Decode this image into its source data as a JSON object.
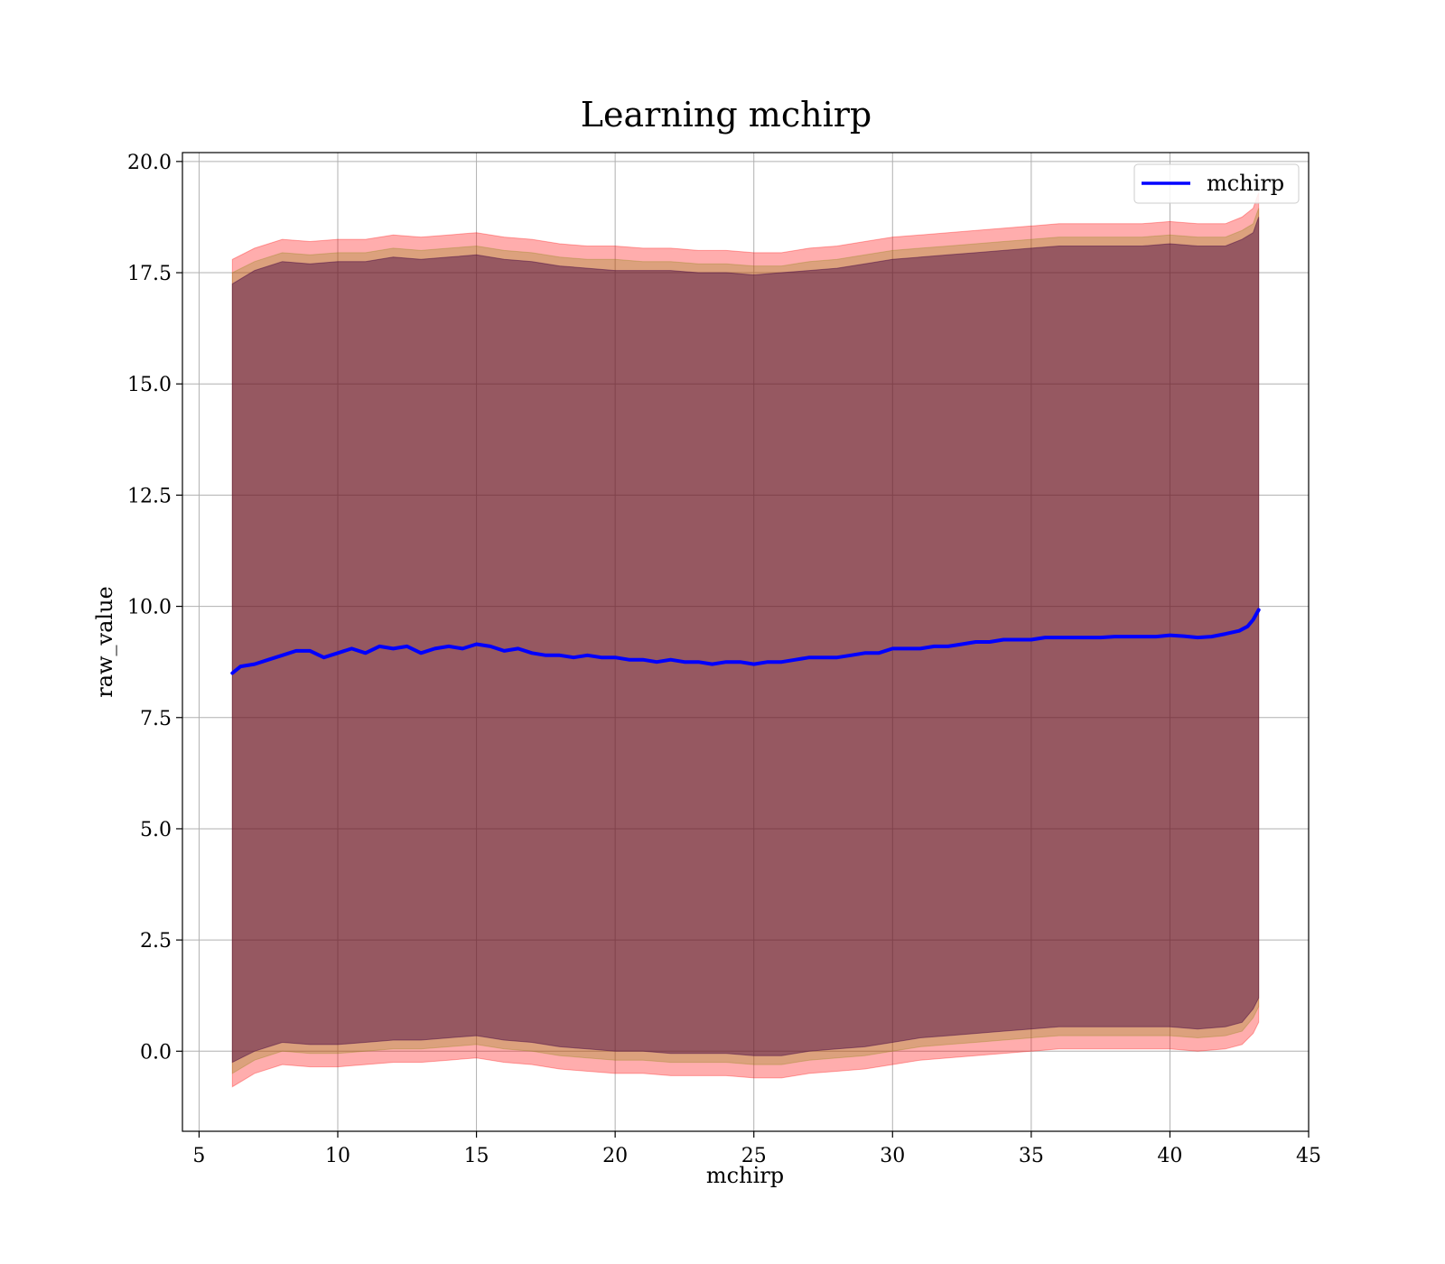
{
  "chart_data": {
    "type": "line",
    "title": "Learning mchirp",
    "xlabel": "mchirp",
    "ylabel": "raw_value",
    "xlim": [
      4.4,
      45
    ],
    "ylim": [
      -1.8,
      20.2
    ],
    "xticks": [
      5,
      10,
      15,
      20,
      25,
      30,
      35,
      40,
      45
    ],
    "xtick_labels": [
      "5",
      "10",
      "15",
      "20",
      "25",
      "30",
      "35",
      "40",
      "45"
    ],
    "yticks": [
      0,
      2.5,
      5,
      7.5,
      10,
      12.5,
      15,
      17.5,
      20
    ],
    "ytick_labels": [
      "0.0",
      "2.5",
      "5.0",
      "7.5",
      "10.0",
      "12.5",
      "15.0",
      "17.5",
      "20.0"
    ],
    "grid": true,
    "legend": {
      "position": "top-right",
      "entries": [
        "mchirp"
      ]
    },
    "series": [
      {
        "name": "mchirp",
        "color": "#0000ff",
        "x": [
          6.2,
          6.5,
          7,
          7.5,
          8,
          8.5,
          9,
          9.5,
          10,
          10.5,
          11,
          11.5,
          12,
          12.5,
          13,
          13.5,
          14,
          14.5,
          15,
          15.5,
          16,
          16.5,
          17,
          17.5,
          18,
          18.5,
          19,
          19.5,
          20,
          20.5,
          21,
          21.5,
          22,
          22.5,
          23,
          23.5,
          24,
          24.5,
          25,
          25.5,
          26,
          26.5,
          27,
          27.5,
          28,
          28.5,
          29,
          29.5,
          30,
          30.5,
          31,
          31.5,
          32,
          32.5,
          33,
          33.5,
          34,
          34.5,
          35,
          35.5,
          36,
          36.5,
          37,
          37.5,
          38,
          38.5,
          39,
          39.5,
          40,
          40.5,
          41,
          41.5,
          42,
          42.5,
          42.8,
          43,
          43.2
        ],
        "y": [
          8.5,
          8.65,
          8.7,
          8.8,
          8.9,
          9.0,
          9.0,
          8.85,
          8.95,
          9.05,
          8.95,
          9.1,
          9.05,
          9.1,
          8.95,
          9.05,
          9.1,
          9.05,
          9.15,
          9.1,
          9.0,
          9.05,
          8.95,
          8.9,
          8.9,
          8.85,
          8.9,
          8.85,
          8.85,
          8.8,
          8.8,
          8.75,
          8.8,
          8.75,
          8.75,
          8.7,
          8.75,
          8.75,
          8.7,
          8.75,
          8.75,
          8.8,
          8.85,
          8.85,
          8.85,
          8.9,
          8.95,
          8.95,
          9.05,
          9.05,
          9.05,
          9.1,
          9.1,
          9.15,
          9.2,
          9.2,
          9.25,
          9.25,
          9.25,
          9.3,
          9.3,
          9.3,
          9.3,
          9.3,
          9.32,
          9.32,
          9.32,
          9.32,
          9.35,
          9.33,
          9.3,
          9.32,
          9.38,
          9.45,
          9.55,
          9.7,
          9.92
        ]
      }
    ],
    "bands": [
      {
        "name": "",
        "color": "#ff0000",
        "opacity": 0.32,
        "x": [
          6.2,
          7,
          8,
          9,
          10,
          11,
          12,
          13,
          14,
          15,
          16,
          17,
          18,
          19,
          20,
          21,
          22,
          23,
          24,
          25,
          26,
          27,
          28,
          29,
          30,
          31,
          32,
          33,
          34,
          35,
          36,
          37,
          38,
          39,
          40,
          41,
          42,
          42.6,
          43,
          43.2
        ],
        "upper": [
          17.8,
          18.05,
          18.25,
          18.2,
          18.25,
          18.25,
          18.35,
          18.3,
          18.35,
          18.4,
          18.3,
          18.25,
          18.15,
          18.1,
          18.1,
          18.05,
          18.05,
          18.0,
          18.0,
          17.95,
          17.95,
          18.05,
          18.1,
          18.2,
          18.3,
          18.35,
          18.4,
          18.45,
          18.5,
          18.55,
          18.6,
          18.6,
          18.6,
          18.6,
          18.65,
          18.6,
          18.6,
          18.75,
          18.95,
          19.3
        ],
        "lower": [
          -0.8,
          -0.5,
          -0.3,
          -0.35,
          -0.35,
          -0.3,
          -0.25,
          -0.25,
          -0.2,
          -0.15,
          -0.25,
          -0.3,
          -0.4,
          -0.45,
          -0.5,
          -0.5,
          -0.55,
          -0.55,
          -0.55,
          -0.6,
          -0.6,
          -0.5,
          -0.45,
          -0.4,
          -0.3,
          -0.2,
          -0.15,
          -0.1,
          -0.05,
          0.0,
          0.05,
          0.05,
          0.05,
          0.05,
          0.05,
          0.0,
          0.05,
          0.15,
          0.4,
          0.65
        ]
      },
      {
        "name": "",
        "color": "#808000",
        "opacity": 0.28,
        "x": [
          6.2,
          7,
          8,
          9,
          10,
          11,
          12,
          13,
          14,
          15,
          16,
          17,
          18,
          19,
          20,
          21,
          22,
          23,
          24,
          25,
          26,
          27,
          28,
          29,
          30,
          31,
          32,
          33,
          34,
          35,
          36,
          37,
          38,
          39,
          40,
          41,
          42,
          42.6,
          43,
          43.2
        ],
        "upper": [
          17.5,
          17.75,
          17.95,
          17.9,
          17.95,
          17.95,
          18.05,
          18.0,
          18.05,
          18.1,
          18.0,
          17.95,
          17.85,
          17.8,
          17.8,
          17.75,
          17.75,
          17.7,
          17.7,
          17.65,
          17.65,
          17.75,
          17.8,
          17.9,
          18.0,
          18.05,
          18.1,
          18.15,
          18.2,
          18.25,
          18.3,
          18.3,
          18.3,
          18.3,
          18.35,
          18.3,
          18.3,
          18.45,
          18.6,
          18.95
        ],
        "lower": [
          -0.5,
          -0.2,
          0.0,
          -0.05,
          -0.05,
          0.0,
          0.05,
          0.05,
          0.1,
          0.15,
          0.05,
          0.0,
          -0.1,
          -0.15,
          -0.2,
          -0.2,
          -0.25,
          -0.25,
          -0.25,
          -0.3,
          -0.3,
          -0.2,
          -0.15,
          -0.1,
          0.0,
          0.1,
          0.15,
          0.2,
          0.25,
          0.3,
          0.35,
          0.35,
          0.35,
          0.35,
          0.35,
          0.3,
          0.35,
          0.45,
          0.75,
          1.0
        ]
      },
      {
        "name": "",
        "color": "#400040",
        "opacity": 0.45,
        "x": [
          6.2,
          7,
          8,
          9,
          10,
          11,
          12,
          13,
          14,
          15,
          16,
          17,
          18,
          19,
          20,
          21,
          22,
          23,
          24,
          25,
          26,
          27,
          28,
          29,
          30,
          31,
          32,
          33,
          34,
          35,
          36,
          37,
          38,
          39,
          40,
          41,
          42,
          42.6,
          43,
          43.2
        ],
        "upper": [
          17.25,
          17.55,
          17.75,
          17.7,
          17.75,
          17.75,
          17.85,
          17.8,
          17.85,
          17.9,
          17.8,
          17.75,
          17.65,
          17.6,
          17.55,
          17.55,
          17.55,
          17.5,
          17.5,
          17.45,
          17.5,
          17.55,
          17.6,
          17.7,
          17.8,
          17.85,
          17.9,
          17.95,
          18.0,
          18.05,
          18.1,
          18.1,
          18.1,
          18.1,
          18.15,
          18.1,
          18.1,
          18.25,
          18.4,
          18.75
        ],
        "lower": [
          -0.25,
          0.0,
          0.2,
          0.15,
          0.15,
          0.2,
          0.25,
          0.25,
          0.3,
          0.35,
          0.25,
          0.2,
          0.1,
          0.05,
          0.0,
          0.0,
          -0.05,
          -0.05,
          -0.05,
          -0.1,
          -0.1,
          0.0,
          0.05,
          0.1,
          0.2,
          0.3,
          0.35,
          0.4,
          0.45,
          0.5,
          0.55,
          0.55,
          0.55,
          0.55,
          0.55,
          0.5,
          0.55,
          0.65,
          0.95,
          1.2
        ]
      }
    ]
  }
}
